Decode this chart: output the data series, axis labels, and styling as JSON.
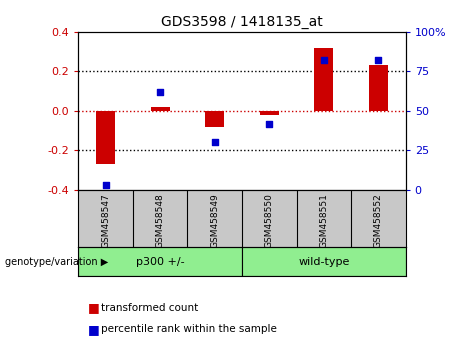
{
  "title": "GDS3598 / 1418135_at",
  "samples": [
    "GSM458547",
    "GSM458548",
    "GSM458549",
    "GSM458550",
    "GSM458551",
    "GSM458552"
  ],
  "bar_values": [
    -0.27,
    0.02,
    -0.08,
    -0.02,
    0.32,
    0.23
  ],
  "scatter_values_pct": [
    3,
    62,
    30,
    42,
    82,
    82
  ],
  "group_divider": 3,
  "ylim_left": [
    -0.4,
    0.4
  ],
  "ylim_right": [
    0,
    100
  ],
  "yticks_left": [
    -0.4,
    -0.2,
    0.0,
    0.2,
    0.4
  ],
  "yticks_right": [
    0,
    25,
    50,
    75,
    100
  ],
  "bar_color": "#CC0000",
  "scatter_color": "#0000CC",
  "zero_line_color": "#CC0000",
  "background_color": "white",
  "panel_bg": "#C8C8C8",
  "group_color": "#90EE90",
  "legend_red_label": "transformed count",
  "legend_blue_label": "percentile rank within the sample",
  "bar_width": 0.35,
  "group_labels": [
    "p300 +/-",
    "wild-type"
  ]
}
